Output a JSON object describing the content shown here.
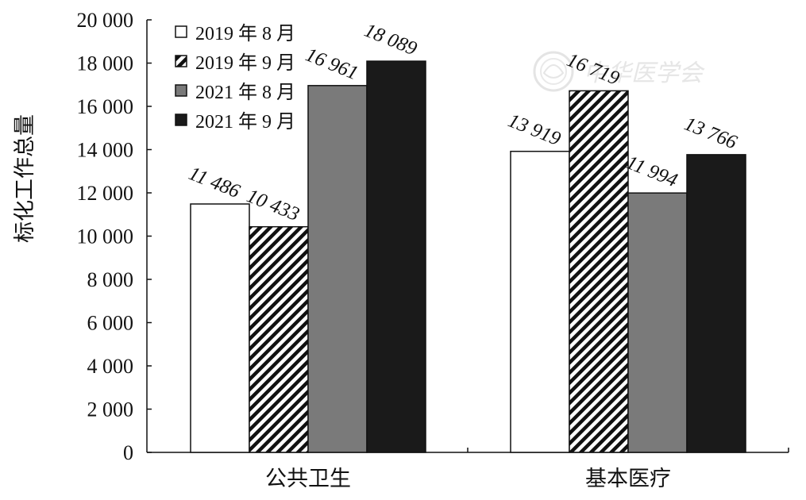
{
  "chart_data": {
    "type": "bar",
    "categories": [
      "公共卫生",
      "基本医疗"
    ],
    "series": [
      {
        "name": "2019 年 8 月",
        "values": [
          11486,
          13919
        ],
        "label_text": [
          "11 486",
          "13 919"
        ],
        "color": "#ffffff",
        "pattern": "none"
      },
      {
        "name": "2019 年 9 月",
        "values": [
          10433,
          16719
        ],
        "label_text": [
          "10 433",
          "16 719"
        ],
        "color": "#111111",
        "pattern": "diagonal-hatch"
      },
      {
        "name": "2021 年 8 月",
        "values": [
          16961,
          11994
        ],
        "label_text": [
          "16 961",
          "11 994"
        ],
        "color": "#7a7a7a",
        "pattern": "none"
      },
      {
        "name": "2021 年 9 月",
        "values": [
          18089,
          13766
        ],
        "label_text": [
          "18 089",
          "13 766"
        ],
        "color": "#1a1a1a",
        "pattern": "none"
      }
    ],
    "ylabel": "标化工作总量",
    "xlabel": "",
    "ylim": [
      0,
      20000
    ],
    "yticks": [
      0,
      2000,
      4000,
      6000,
      8000,
      10000,
      12000,
      14000,
      16000,
      18000,
      20000
    ],
    "ytick_labels": [
      "0",
      "2 000",
      "4 000",
      "6 000",
      "8 000",
      "10 000",
      "12 000",
      "14 000",
      "16 000",
      "18 000",
      "20 000"
    ],
    "grid": false,
    "legend_position": "top-left"
  },
  "watermark": {
    "text": "中华医学会",
    "icon": "seal-logo-icon"
  }
}
